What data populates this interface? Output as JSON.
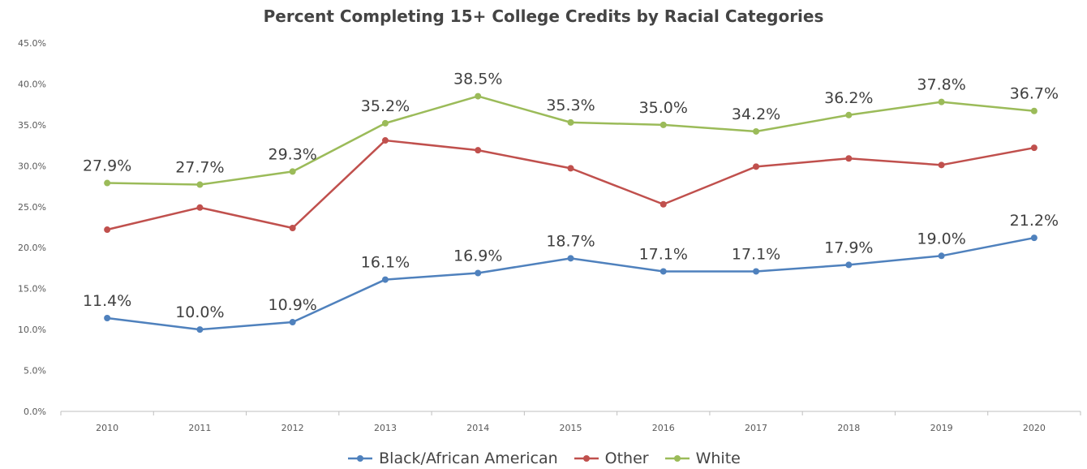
{
  "chart_data": {
    "type": "line",
    "title": "Percent Completing  15+ College Credits by Racial Categories",
    "xlabel": "",
    "ylabel": "",
    "categories": [
      "2010",
      "2011",
      "2012",
      "2013",
      "2014",
      "2015",
      "2016",
      "2017",
      "2018",
      "2019",
      "2020"
    ],
    "ylim": [
      0,
      45
    ],
    "yticks": [
      0,
      5,
      10,
      15,
      20,
      25,
      30,
      35,
      40,
      45
    ],
    "ytick_labels": [
      "0.0%",
      "5.0%",
      "10.0%",
      "15.0%",
      "20.0%",
      "25.0%",
      "30.0%",
      "35.0%",
      "40.0%",
      "45.0%"
    ],
    "grid": false,
    "legend_position": "bottom",
    "series": [
      {
        "name": "Black/African American",
        "color": "#4f81bd",
        "values": [
          11.4,
          10.0,
          10.9,
          16.1,
          16.9,
          18.7,
          17.1,
          17.1,
          17.9,
          19.0,
          21.2
        ],
        "data_labels": [
          "11.4%",
          "10.0%",
          "10.9%",
          "16.1%",
          "16.9%",
          "18.7%",
          "17.1%",
          "17.1%",
          "17.9%",
          "19.0%",
          "21.2%"
        ]
      },
      {
        "name": "Other",
        "color": "#c0504d",
        "values": [
          22.2,
          24.9,
          22.4,
          33.1,
          31.9,
          29.7,
          25.3,
          29.9,
          30.9,
          30.1,
          32.2
        ],
        "data_labels": []
      },
      {
        "name": "White",
        "color": "#9bbb59",
        "values": [
          27.9,
          27.7,
          29.3,
          35.2,
          38.5,
          35.3,
          35.0,
          34.2,
          36.2,
          37.8,
          36.7
        ],
        "data_labels": [
          "27.9%",
          "27.7%",
          "29.3%",
          "35.2%",
          "38.5%",
          "35.3%",
          "35.0%",
          "34.2%",
          "36.2%",
          "37.8%",
          "36.7%"
        ]
      }
    ]
  }
}
